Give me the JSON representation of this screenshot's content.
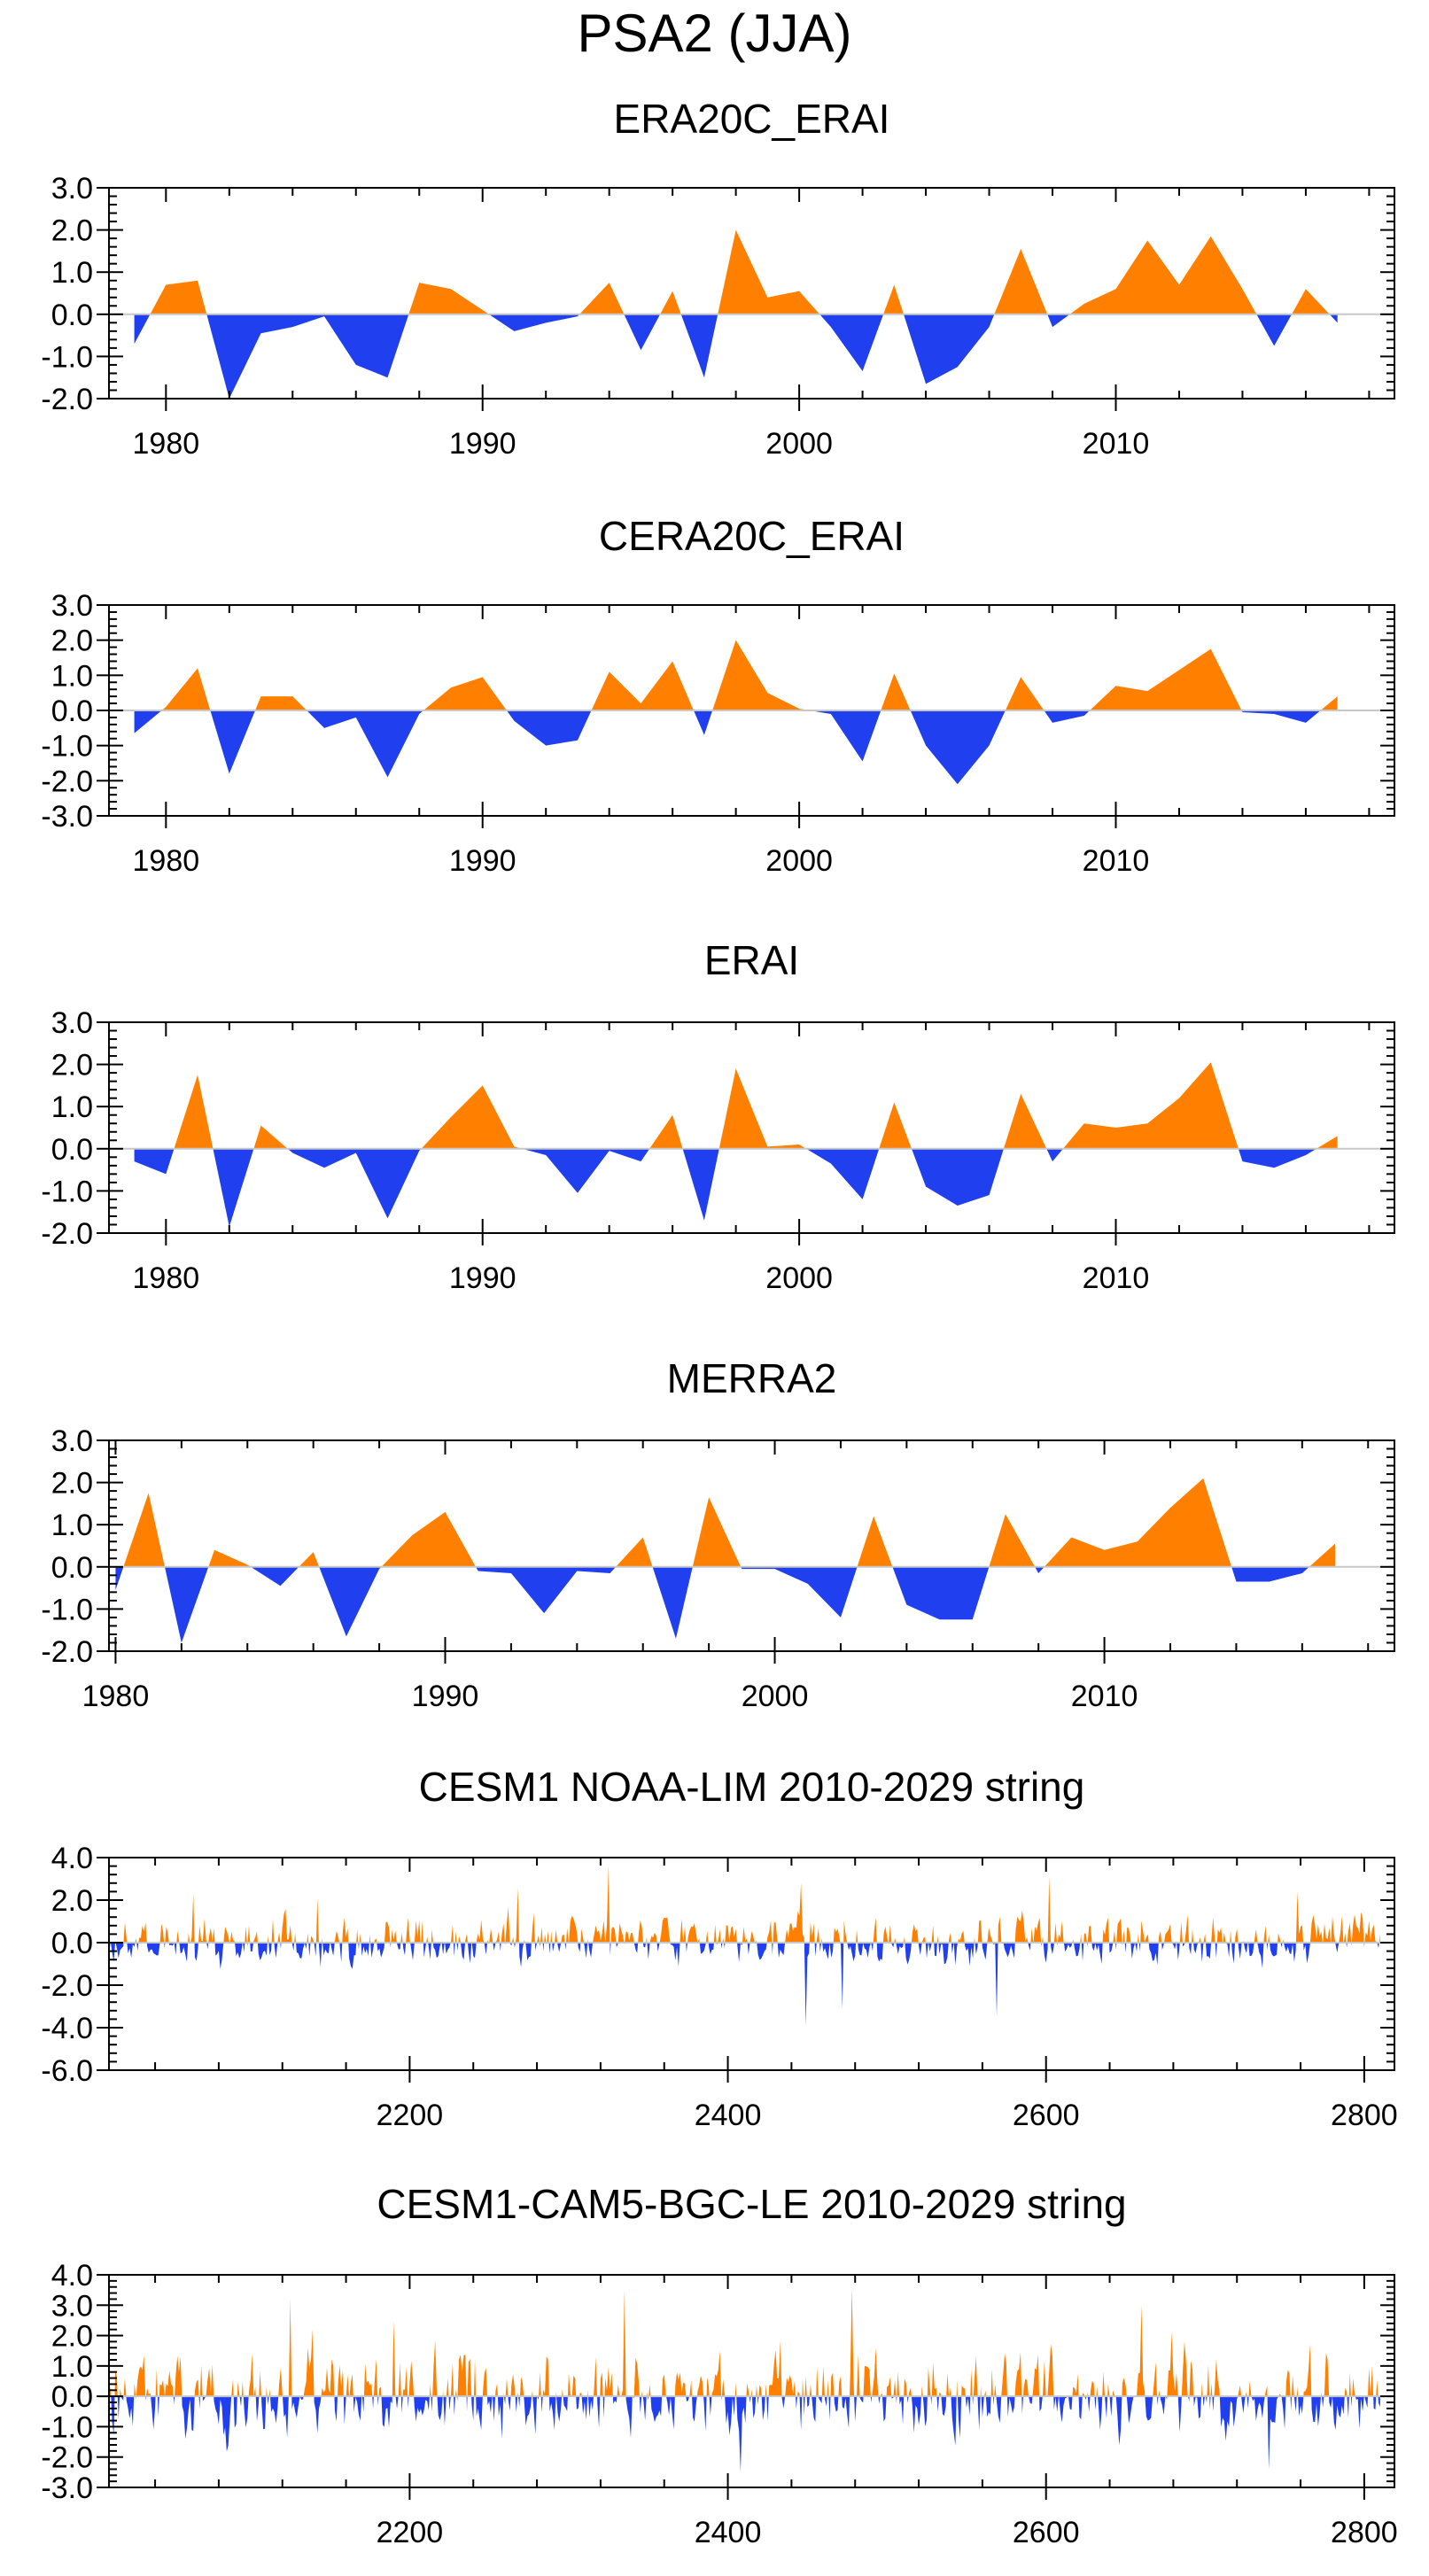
{
  "title": "PSA2 (JJA)",
  "colors": {
    "positive": "#ff8000",
    "negative": "#2040f0",
    "frame": "#000000"
  },
  "chart_data": [
    {
      "type": "area",
      "title": "ERA20C_ERAI",
      "xlim": [
        1978.2,
        2018.8
      ],
      "ylim": [
        -2.0,
        3.0
      ],
      "yticks": [
        "3.0",
        "2.0",
        "1.0",
        "0.0",
        "-1.0",
        "-2.0"
      ],
      "ytick_values": [
        3,
        2,
        1,
        0,
        -1,
        -2
      ],
      "xticks": [
        "1980",
        "1990",
        "2000",
        "2010"
      ],
      "xtick_values": [
        1980,
        1990,
        2000,
        2010
      ],
      "x_start": 1979,
      "values": [
        -0.7,
        0.7,
        0.8,
        -2.0,
        -0.45,
        -0.3,
        -0.05,
        -1.2,
        -1.5,
        0.75,
        0.6,
        0.1,
        -0.4,
        -0.2,
        -0.05,
        0.75,
        -0.85,
        0.55,
        -1.5,
        2.0,
        0.4,
        0.55,
        -0.3,
        -1.35,
        0.7,
        -1.65,
        -1.25,
        -0.3,
        1.55,
        -0.3,
        0.25,
        0.6,
        1.75,
        0.7,
        1.85,
        0.6,
        -0.75,
        0.6,
        -0.2
      ]
    },
    {
      "type": "area",
      "title": "CERA20C_ERAI",
      "xlim": [
        1978.2,
        2018.8
      ],
      "ylim": [
        -3.0,
        3.0
      ],
      "yticks": [
        "3.0",
        "2.0",
        "1.0",
        "0.0",
        "-1.0",
        "-2.0",
        "-3.0"
      ],
      "ytick_values": [
        3,
        2,
        1,
        0,
        -1,
        -2,
        -3
      ],
      "xticks": [
        "1980",
        "1990",
        "2000",
        "2010"
      ],
      "xtick_values": [
        1980,
        1990,
        2000,
        2010
      ],
      "x_start": 1979,
      "values": [
        -0.65,
        0.1,
        1.2,
        -1.8,
        0.4,
        0.4,
        -0.5,
        -0.2,
        -1.9,
        -0.1,
        0.65,
        0.95,
        -0.3,
        -1.0,
        -0.85,
        1.1,
        0.2,
        1.4,
        -0.7,
        2.0,
        0.5,
        0.05,
        -0.1,
        -1.45,
        1.05,
        -1.0,
        -2.1,
        -1.0,
        0.95,
        -0.35,
        -0.15,
        0.7,
        0.55,
        1.15,
        1.75,
        -0.05,
        -0.1,
        -0.35,
        0.4
      ]
    },
    {
      "type": "area",
      "title": "ERAI",
      "xlim": [
        1978.2,
        2018.8
      ],
      "ylim": [
        -2.0,
        3.0
      ],
      "yticks": [
        "3.0",
        "2.0",
        "1.0",
        "0.0",
        "-1.0",
        "-2.0"
      ],
      "ytick_values": [
        3,
        2,
        1,
        0,
        -1,
        -2
      ],
      "xticks": [
        "1980",
        "1990",
        "2000",
        "2010"
      ],
      "xtick_values": [
        1980,
        1990,
        2000,
        2010
      ],
      "x_start": 1979,
      "values": [
        -0.3,
        -0.6,
        1.75,
        -1.85,
        0.55,
        -0.1,
        -0.45,
        -0.1,
        -1.65,
        -0.05,
        0.75,
        1.5,
        0.05,
        -0.15,
        -1.05,
        -0.05,
        -0.3,
        0.8,
        -1.7,
        1.9,
        0.05,
        0.1,
        -0.35,
        -1.2,
        1.1,
        -0.9,
        -1.35,
        -1.1,
        1.3,
        -0.3,
        0.6,
        0.5,
        0.6,
        1.2,
        2.05,
        -0.3,
        -0.45,
        -0.15,
        0.3
      ]
    },
    {
      "type": "area",
      "title": "MERRA2",
      "xlim": [
        1979.8,
        2018.8
      ],
      "ylim": [
        -2.0,
        3.0
      ],
      "yticks": [
        "3.0",
        "2.0",
        "1.0",
        "0.0",
        "-1.0",
        "-2.0"
      ],
      "ytick_values": [
        3,
        2,
        1,
        0,
        -1,
        -2
      ],
      "xticks": [
        "1980",
        "1990",
        "2000",
        "2010"
      ],
      "xtick_values": [
        1980,
        1990,
        2000,
        2010
      ],
      "x_start": 1980,
      "values": [
        -0.55,
        1.75,
        -1.8,
        0.4,
        0.05,
        -0.45,
        0.35,
        -1.65,
        -0.05,
        0.75,
        1.3,
        -0.1,
        -0.15,
        -1.1,
        -0.1,
        -0.15,
        0.7,
        -1.7,
        1.65,
        -0.05,
        -0.05,
        -0.4,
        -1.2,
        1.2,
        -0.9,
        -1.25,
        -1.25,
        1.25,
        -0.15,
        0.7,
        0.4,
        0.6,
        1.4,
        2.1,
        -0.35,
        -0.35,
        -0.15,
        0.55
      ]
    },
    {
      "type": "area",
      "title": "CESM1 NOAA-LIM 2010-2029 string",
      "xlim": [
        2011,
        2819
      ],
      "ylim": [
        -6.0,
        4.0
      ],
      "yticks": [
        "4.0",
        "2.0",
        "0.0",
        "-2.0",
        "-4.0",
        "-6.0"
      ],
      "ytick_values": [
        4,
        2,
        0,
        -2,
        -4,
        -6
      ],
      "xticks": [
        "2200",
        "2400",
        "2600",
        "2800"
      ],
      "xtick_values": [
        2200,
        2400,
        2600,
        2800
      ],
      "x_start": 2011,
      "n_points": 800,
      "amp_pos": 1.0,
      "amp_neg": 0.75,
      "spikes": [
        [
          2064,
          2.3
        ],
        [
          2142,
          2.1
        ],
        [
          2268,
          2.6
        ],
        [
          2325,
          3.6
        ],
        [
          2446,
          2.8
        ],
        [
          2449,
          -3.9
        ],
        [
          2472,
          -3.1
        ],
        [
          2569,
          -3.5
        ],
        [
          2602,
          3.1
        ],
        [
          2758,
          2.4
        ]
      ]
    },
    {
      "type": "area",
      "title": "CESM1-CAM5-BGC-LE 2010-2029 string",
      "xlim": [
        2011,
        2819
      ],
      "ylim": [
        -3.0,
        4.0
      ],
      "yticks": [
        "4.0",
        "3.0",
        "2.0",
        "1.0",
        "0.0",
        "-1.0",
        "-2.0",
        "-3.0"
      ],
      "ytick_values": [
        4,
        3,
        2,
        1,
        0,
        -1,
        -2,
        -3
      ],
      "xticks": [
        "2200",
        "2400",
        "2600",
        "2800"
      ],
      "xtick_values": [
        2200,
        2400,
        2600,
        2800
      ],
      "x_start": 2011,
      "n_points": 800,
      "amp_pos": 1.1,
      "amp_neg": 0.9,
      "spikes": [
        [
          2125,
          3.2
        ],
        [
          2190,
          2.5
        ],
        [
          2335,
          3.5
        ],
        [
          2478,
          3.6
        ],
        [
          2408,
          -2.5
        ],
        [
          2660,
          3.0
        ],
        [
          2740,
          -2.4
        ]
      ]
    }
  ]
}
